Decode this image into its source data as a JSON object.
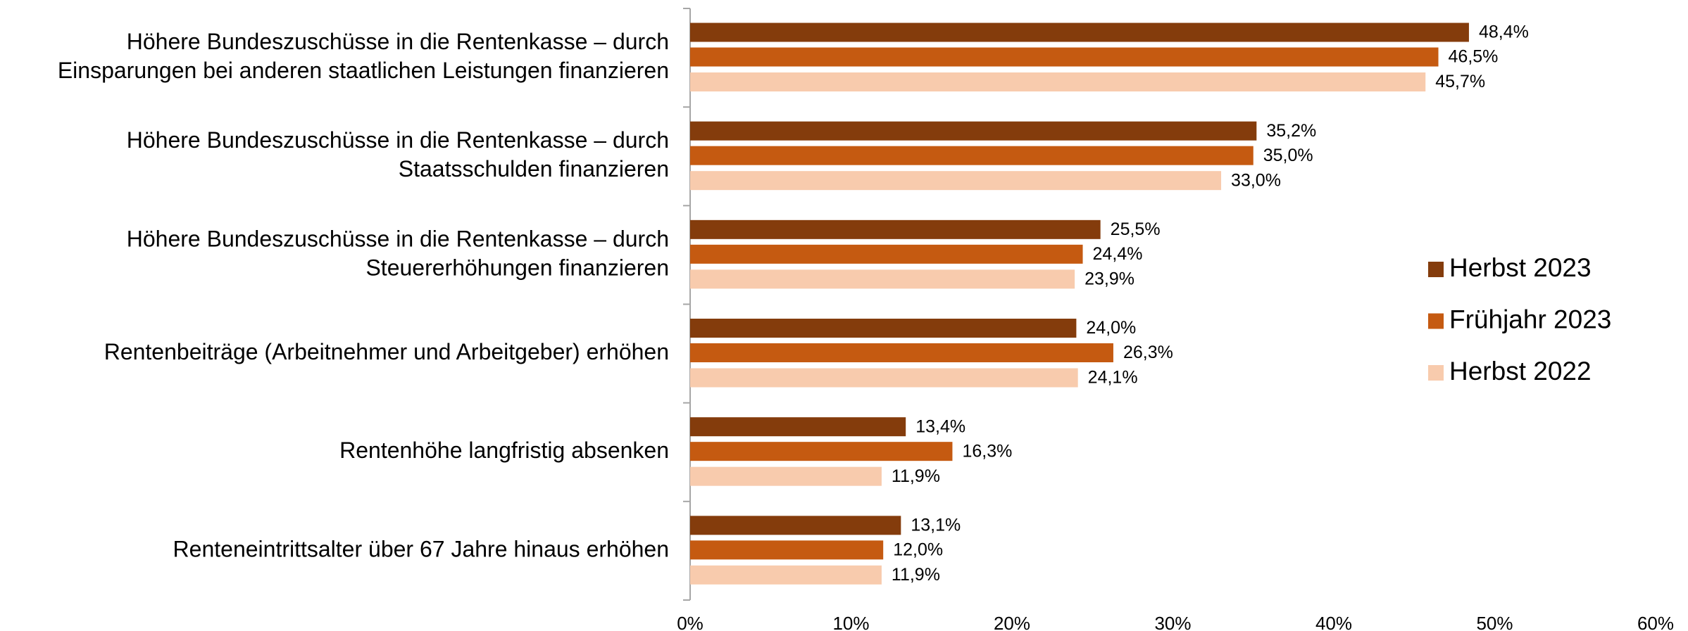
{
  "chart_data": {
    "type": "hbar",
    "categories": [
      [
        "Höhere Bundeszuschüsse in die Rentenkasse – durch",
        "Einsparungen bei anderen staatlichen Leistungen  finanzieren"
      ],
      [
        "Höhere Bundeszuschüsse in die Rentenkasse – durch",
        "Staatsschulden  finanzieren"
      ],
      [
        "Höhere Bundeszuschüsse in die Rentenkasse – durch",
        "Steuererhöhungen  finanzieren"
      ],
      [
        "Rentenbeiträge (Arbeitnehmer und Arbeitgeber) erhöhen"
      ],
      [
        "Rentenhöhe langfristig absenken"
      ],
      [
        "Renteneintrittsalter über 67 Jahre hinaus erhöhen"
      ]
    ],
    "series": [
      {
        "name": "Herbst 2023",
        "color": "#843c0c",
        "values": [
          48.4,
          35.2,
          25.5,
          24.0,
          13.4,
          13.1
        ],
        "value_labels": [
          "48,4%",
          "35,2%",
          "25,5%",
          "24,0%",
          "13,4%",
          "13,1%"
        ]
      },
      {
        "name": "Frühjahr 2023",
        "color": "#c55a11",
        "values": [
          46.5,
          35.0,
          24.4,
          26.3,
          16.3,
          12.0
        ],
        "value_labels": [
          "46,5%",
          "35,0%",
          "24,4%",
          "26,3%",
          "16,3%",
          "12,0%"
        ]
      },
      {
        "name": "Herbst 2022",
        "color": "#f8cbad",
        "values": [
          45.7,
          33.0,
          23.9,
          24.1,
          11.9,
          11.9
        ],
        "value_labels": [
          "45,7%",
          "33,0%",
          "23,9%",
          "24,1%",
          "11,9%",
          "11,9%"
        ]
      }
    ],
    "xlim": [
      0,
      60
    ],
    "xticks": [
      {
        "value": 0,
        "label": "0%"
      },
      {
        "value": 10,
        "label": "10%"
      },
      {
        "value": 20,
        "label": "20%"
      },
      {
        "value": 30,
        "label": "30%"
      },
      {
        "value": 40,
        "label": "40%"
      },
      {
        "value": 50,
        "label": "50%"
      },
      {
        "value": 60,
        "label": "60%"
      }
    ],
    "legend": "right"
  }
}
